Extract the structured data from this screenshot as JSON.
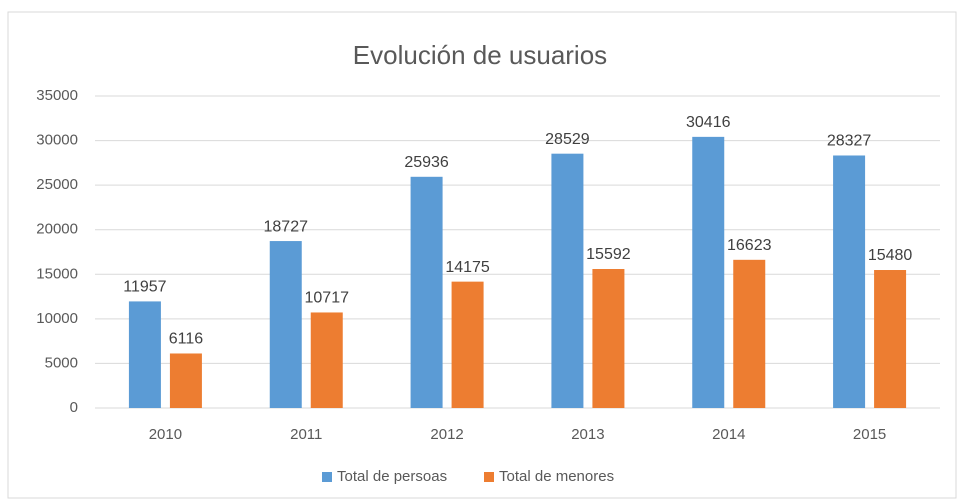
{
  "chart_data": {
    "type": "bar",
    "title": "Evolución de usuarios",
    "categories": [
      "2010",
      "2011",
      "2012",
      "2013",
      "2014",
      "2015"
    ],
    "series": [
      {
        "name": "Total de persoas",
        "color": "#5b9bd5",
        "values": [
          11957,
          18727,
          25936,
          28529,
          30416,
          28327
        ]
      },
      {
        "name": "Total de menores",
        "color": "#ed7d31",
        "values": [
          6116,
          10717,
          14175,
          15592,
          16623,
          15480
        ]
      }
    ],
    "ylim": [
      0,
      35000
    ],
    "yticks": [
      0,
      5000,
      10000,
      15000,
      20000,
      25000,
      30000,
      35000
    ],
    "grid": true,
    "legend": "bottom"
  }
}
